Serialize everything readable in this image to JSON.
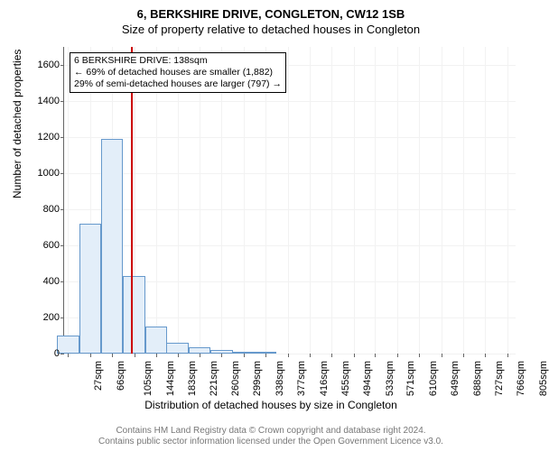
{
  "title_main": "6, BERKSHIRE DRIVE, CONGLETON, CW12 1SB",
  "title_sub": "Size of property relative to detached houses in Congleton",
  "ylabel": "Number of detached properties",
  "xlabel": "Distribution of detached houses by size in Congleton",
  "footer_line1": "Contains HM Land Registry data © Crown copyright and database right 2024.",
  "footer_line2": "Contains public sector information licensed under the Open Government Licence v3.0.",
  "annotation": {
    "line1": "6 BERKSHIRE DRIVE: 138sqm",
    "line2": "← 69% of detached houses are smaller (1,882)",
    "line3": "29% of semi-detached houses are larger (797) →"
  },
  "chart": {
    "type": "histogram",
    "background_color": "#ffffff",
    "grid_color": "#f2f2f2",
    "axis_color": "#666666",
    "bar_fill": "#e3eef9",
    "bar_border": "#6699cc",
    "ref_line_color": "#cc0000",
    "ref_line_x": 138,
    "ylim": [
      0,
      1700
    ],
    "yticks": [
      0,
      200,
      400,
      600,
      800,
      1000,
      1200,
      1400,
      1600
    ],
    "xlim": [
      20,
      820
    ],
    "xticks": [
      27,
      66,
      105,
      144,
      183,
      221,
      260,
      299,
      338,
      377,
      416,
      455,
      494,
      533,
      571,
      610,
      649,
      688,
      727,
      766,
      805
    ],
    "xtick_suffix": "sqm",
    "bar_width_data": 39,
    "bars": [
      {
        "x": 27,
        "y": 100
      },
      {
        "x": 66,
        "y": 720
      },
      {
        "x": 105,
        "y": 1190
      },
      {
        "x": 144,
        "y": 430
      },
      {
        "x": 183,
        "y": 150
      },
      {
        "x": 221,
        "y": 60
      },
      {
        "x": 260,
        "y": 35
      },
      {
        "x": 299,
        "y": 20
      },
      {
        "x": 338,
        "y": 10
      },
      {
        "x": 377,
        "y": 10
      }
    ],
    "title_fontsize": 13,
    "label_fontsize": 12,
    "tick_fontsize": 11
  }
}
